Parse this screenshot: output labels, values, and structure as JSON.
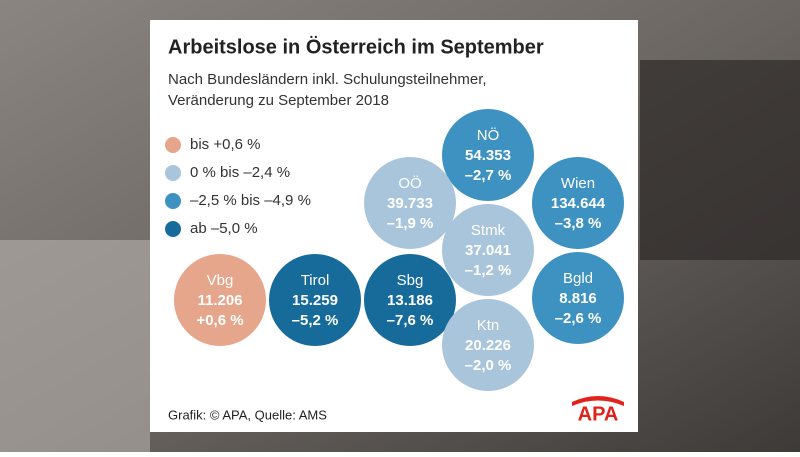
{
  "header": {
    "title": "Arbeitslose in Österreich im September",
    "subtitle_lines": [
      "Nach Bundesländern inkl. Schulungsteilnehmer,",
      "Veränderung zu September 2018"
    ]
  },
  "legend": [
    {
      "label": "bis +0,6 %",
      "color": "#e6a68c"
    },
    {
      "label": "0 % bis –2,4 %",
      "color": "#a8c5db"
    },
    {
      "label": "–2,5 % bis –4,9 %",
      "color": "#3d92c2"
    },
    {
      "label": "ab –5,0 %",
      "color": "#176b9b"
    }
  ],
  "regions": [
    {
      "name": "NÖ",
      "value": "54.353",
      "change": "–2,7 %",
      "color": "#3d92c2"
    },
    {
      "name": "Wien",
      "value": "134.644",
      "change": "–3,8 %",
      "color": "#3d92c2"
    },
    {
      "name": "OÖ",
      "value": "39.733",
      "change": "–1,9 %",
      "color": "#a8c5db"
    },
    {
      "name": "Stmk",
      "value": "37.041",
      "change": "–1,2 %",
      "color": "#a8c5db"
    },
    {
      "name": "Vbg",
      "value": "11.206",
      "change": "+0,6 %",
      "color": "#e6a68c"
    },
    {
      "name": "Tirol",
      "value": "15.259",
      "change": "–5,2 %",
      "color": "#176b9b"
    },
    {
      "name": "Sbg",
      "value": "13.186",
      "change": "–7,6 %",
      "color": "#176b9b"
    },
    {
      "name": "Bgld",
      "value": "8.816",
      "change": "–2,6 %",
      "color": "#3d92c2"
    },
    {
      "name": "Ktn",
      "value": "20.226",
      "change": "–2,0 %",
      "color": "#a8c5db"
    }
  ],
  "footer": {
    "source": "Grafik: © APA, Quelle: AMS",
    "logo": "APA"
  }
}
